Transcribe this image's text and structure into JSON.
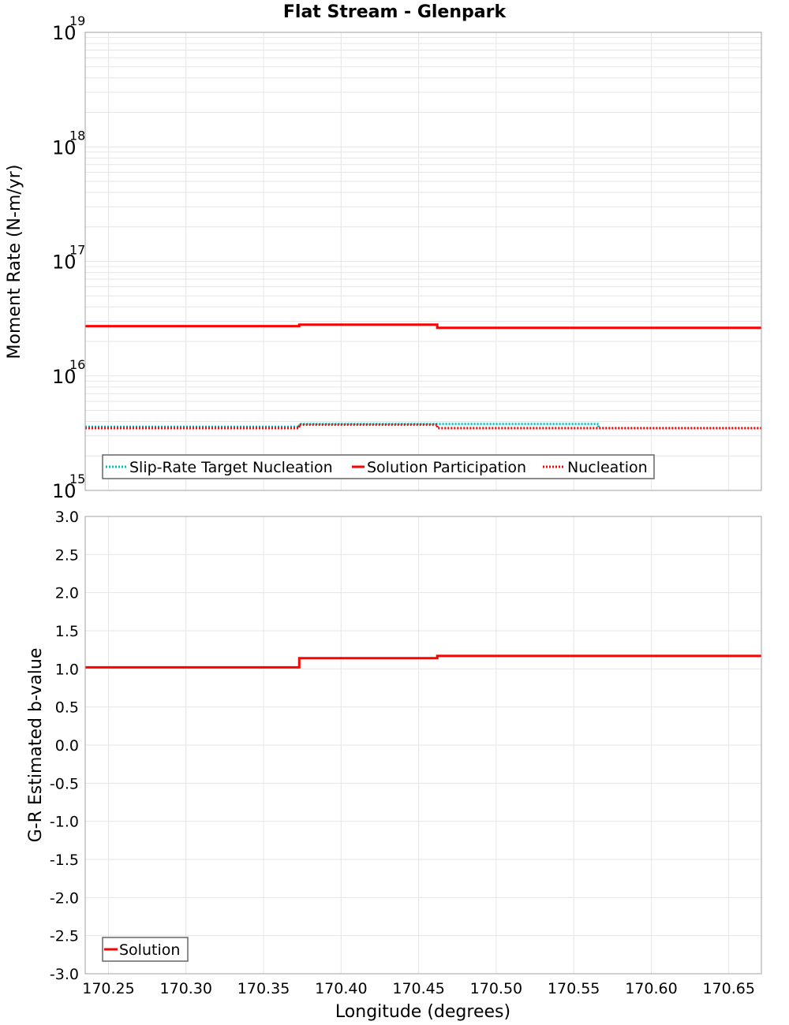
{
  "title": "Flat Stream - Glenpark",
  "colors": {
    "slip_rate_target": "#00c0c0",
    "solution": "#ff0000",
    "nucleation": "#ff0000",
    "grid": "#e6e6e6",
    "frame": "#a0a0a0"
  },
  "x_axis": {
    "label": "Longitude (degrees)",
    "min": 170.235,
    "max": 170.671,
    "ticks": [
      "170.25",
      "170.30",
      "170.35",
      "170.40",
      "170.45",
      "170.50",
      "170.55",
      "170.60",
      "170.65"
    ]
  },
  "top_panel": {
    "ylabel": "Moment Rate (N-m/yr)",
    "ytick_base": "10",
    "ytick_exponents": [
      "19",
      "18",
      "17",
      "16",
      "15"
    ],
    "legend": [
      {
        "label": "Slip-Rate Target Nucleation",
        "style": "dotted",
        "color": "#00c0c0"
      },
      {
        "label": "Solution Participation",
        "style": "solid",
        "color": "#ff0000"
      },
      {
        "label": "Nucleation",
        "style": "dotted",
        "color": "#ff0000"
      }
    ]
  },
  "bottom_panel": {
    "ylabel": "G-R Estimated b-value",
    "yticks": [
      "3.0",
      "2.5",
      "2.0",
      "1.5",
      "1.0",
      "0.5",
      "0.0",
      "-0.5",
      "-1.0",
      "-1.5",
      "-2.0",
      "-2.5",
      "-3.0"
    ],
    "legend": [
      {
        "label": "Solution",
        "style": "solid",
        "color": "#ff0000"
      }
    ]
  },
  "chart_data": [
    {
      "type": "line",
      "title": "Flat Stream - Glenpark",
      "xlabel": "Longitude (degrees)",
      "ylabel": "Moment Rate (N-m/yr)",
      "yscale": "log",
      "ylim": [
        1000000000000000.0,
        1e+19
      ],
      "xlim": [
        170.235,
        170.671
      ],
      "grid": true,
      "legend_position": "lower-left",
      "step": true,
      "x": [
        170.235,
        170.373,
        170.462,
        170.566,
        170.671
      ],
      "series": [
        {
          "name": "Slip-Rate Target Nucleation",
          "style": "dotted",
          "color": "#00c0c0",
          "values": [
            3600000000000000.0,
            3800000000000000.0,
            3800000000000000.0,
            3500000000000000.0
          ]
        },
        {
          "name": "Solution Participation",
          "style": "solid",
          "color": "#ff0000",
          "values": [
            2.72e+16,
            2.8e+16,
            2.63e+16,
            2.63e+16
          ]
        },
        {
          "name": "Nucleation",
          "style": "dotted",
          "color": "#ff0000",
          "values": [
            3500000000000000.0,
            3750000000000000.0,
            3500000000000000.0,
            3500000000000000.0
          ]
        }
      ]
    },
    {
      "type": "line",
      "xlabel": "Longitude (degrees)",
      "ylabel": "G-R Estimated b-value",
      "ylim": [
        -3.0,
        3.0
      ],
      "xlim": [
        170.235,
        170.671
      ],
      "grid": true,
      "legend_position": "lower-left",
      "step": true,
      "x": [
        170.235,
        170.373,
        170.462,
        170.566,
        170.671
      ],
      "series": [
        {
          "name": "Solution",
          "style": "solid",
          "color": "#ff0000",
          "values": [
            1.02,
            1.14,
            1.17,
            1.17
          ]
        }
      ]
    }
  ]
}
